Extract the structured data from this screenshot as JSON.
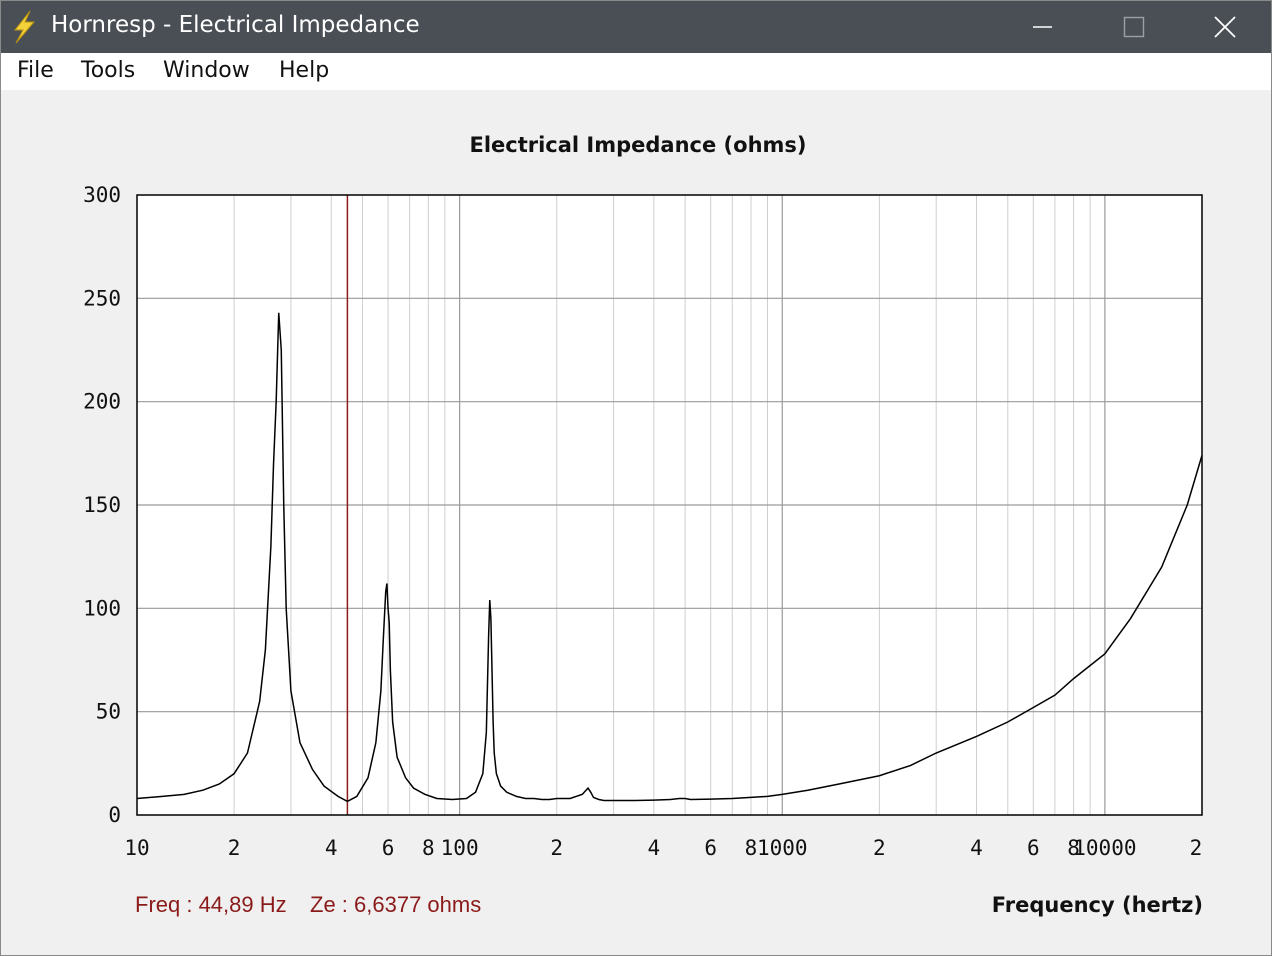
{
  "window": {
    "title": "Hornresp - Electrical Impedance",
    "icon": "lightning-bolt-icon",
    "controls": [
      "minimize-icon",
      "maximize-icon",
      "close-icon"
    ]
  },
  "menu": {
    "items": [
      {
        "label": "File"
      },
      {
        "label": "Tools"
      },
      {
        "label": "Window"
      },
      {
        "label": "Help"
      }
    ]
  },
  "readout": {
    "freq": "Freq : 44,89 Hz",
    "ze": "Ze : 6,6377 ohms"
  },
  "chart_data": {
    "type": "line",
    "title": "Electrical Impedance (ohms)",
    "xlabel": "Frequency (hertz)",
    "ylabel": "",
    "xscale": "log",
    "xlim": [
      10,
      20000
    ],
    "ylim": [
      0,
      300
    ],
    "yticks": [
      "0",
      "50",
      "100",
      "150",
      "200",
      "250",
      "300"
    ],
    "xticks": [
      {
        "value": 10,
        "label": "10"
      },
      {
        "value": 20,
        "label": "2"
      },
      {
        "value": 40,
        "label": "4"
      },
      {
        "value": 60,
        "label": "6"
      },
      {
        "value": 80,
        "label": "8"
      },
      {
        "value": 100,
        "label": "100"
      },
      {
        "value": 200,
        "label": "2"
      },
      {
        "value": 400,
        "label": "4"
      },
      {
        "value": 600,
        "label": "6"
      },
      {
        "value": 800,
        "label": "8"
      },
      {
        "value": 1000,
        "label": "1000"
      },
      {
        "value": 2000,
        "label": "2"
      },
      {
        "value": 4000,
        "label": "4"
      },
      {
        "value": 6000,
        "label": "6"
      },
      {
        "value": 8000,
        "label": "8"
      },
      {
        "value": 10000,
        "label": "10000"
      },
      {
        "value": 20000,
        "label": "2"
      }
    ],
    "grid": true,
    "cursor": {
      "x": 44.89,
      "color": "#8b1a1a"
    },
    "line_color": "#000000",
    "series": [
      {
        "x": [
          10,
          12,
          14,
          16,
          18,
          20,
          22,
          24,
          25,
          26,
          26.5,
          27,
          27.5,
          28,
          28.5,
          29,
          30,
          32,
          35,
          38,
          42,
          44.89,
          48,
          52,
          55,
          57,
          58,
          59,
          59.5,
          60,
          60.5,
          61,
          62,
          64,
          68,
          72,
          78,
          85,
          95,
          105,
          112,
          118,
          121,
          123,
          124,
          125,
          126,
          127,
          128,
          130,
          134,
          140,
          150,
          160,
          170,
          180,
          190,
          200,
          220,
          240,
          250,
          255,
          260,
          270,
          280,
          300,
          350,
          400,
          450,
          480,
          500,
          520,
          600,
          700,
          800,
          900,
          1000,
          1200,
          1500,
          2000,
          2500,
          3000,
          4000,
          5000,
          6000,
          7000,
          8000,
          10000,
          12000,
          15000,
          18000,
          20000
        ],
        "y": [
          8,
          9,
          10,
          12,
          15,
          20,
          30,
          55,
          80,
          130,
          170,
          200,
          243,
          225,
          150,
          100,
          60,
          35,
          22,
          14,
          9,
          6.6,
          9,
          18,
          35,
          60,
          85,
          108,
          112,
          100,
          93,
          70,
          45,
          28,
          18,
          13,
          10,
          8,
          7.5,
          8,
          11,
          20,
          40,
          87,
          104,
          95,
          70,
          45,
          30,
          20,
          14,
          11,
          9,
          8,
          8,
          7.5,
          7.5,
          8,
          8,
          10,
          13,
          11,
          8.5,
          7.5,
          7,
          7,
          7,
          7.2,
          7.5,
          8,
          8,
          7.5,
          7.7,
          8,
          8.5,
          9,
          10,
          12,
          15,
          19,
          24,
          30,
          38,
          45,
          52,
          58,
          66,
          78,
          95,
          120,
          150,
          174
        ]
      }
    ]
  }
}
